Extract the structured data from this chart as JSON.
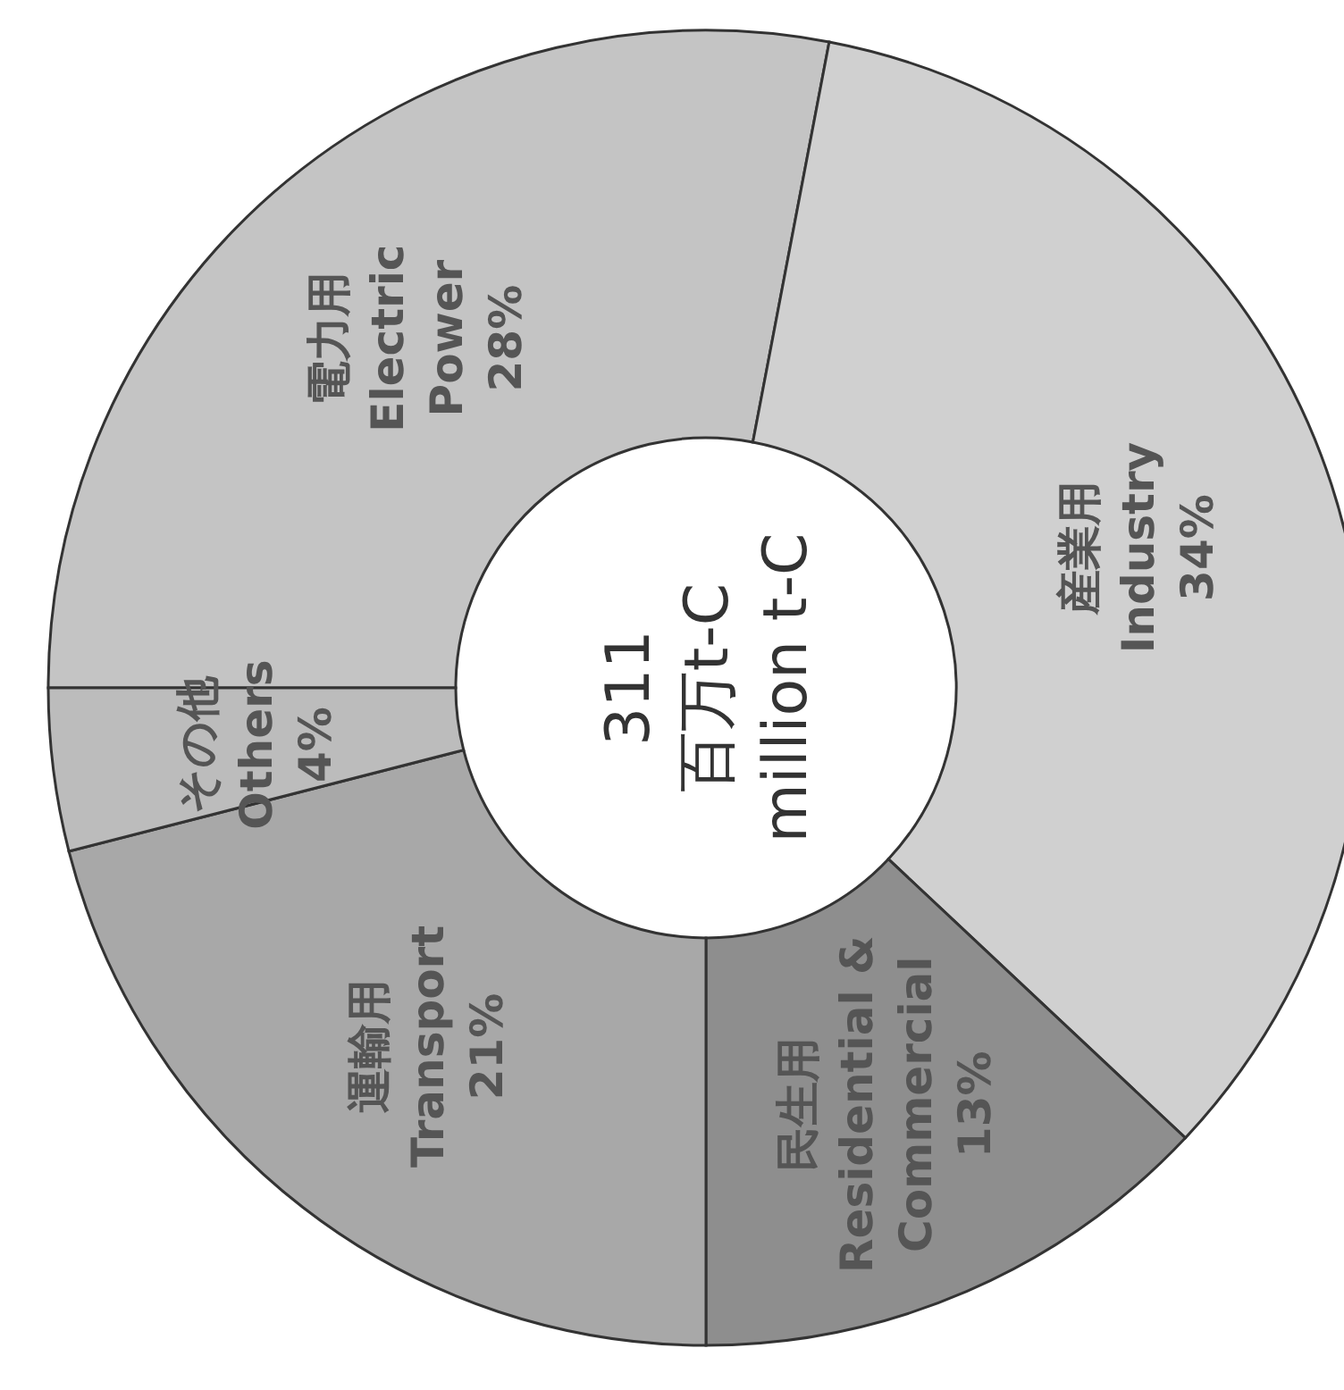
{
  "chart_data": {
    "type": "donut",
    "categories": [
      "電力用\nElectric\nPower",
      "産業用\nIndustry",
      "民生用\nResidential &\nCommercial",
      "運輸用\nTransport",
      "その他\nOthers"
    ],
    "values": [
      28,
      34,
      13,
      21,
      4
    ],
    "value_labels": [
      "28%",
      "34%",
      "13%",
      "21%",
      "4%"
    ],
    "colors": [
      "#c4c4c4",
      "#d0d0d0",
      "#8e8e8e",
      "#a8a8a8",
      "#bcbcbc"
    ],
    "annotations": [
      "311",
      "百万t-C",
      "million t-C"
    ]
  }
}
